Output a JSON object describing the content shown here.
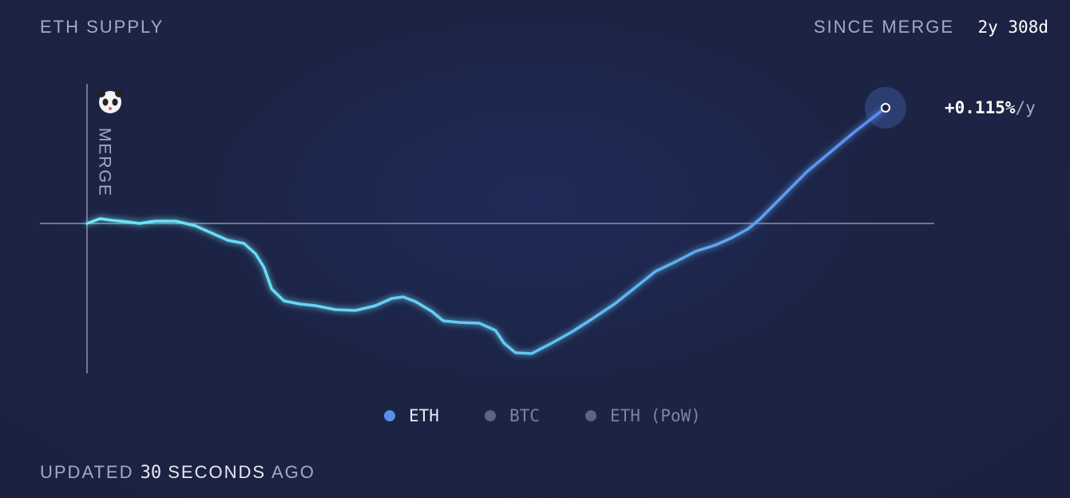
{
  "header": {
    "title": "ETH SUPPLY",
    "since_label": "SINCE MERGE",
    "since_value": "2y 308d"
  },
  "chart_data": {
    "type": "line",
    "marker_label": "MERGE",
    "end_label": "+0.115%",
    "end_unit": "/y",
    "x": [
      0,
      17,
      32,
      53,
      68,
      89,
      115,
      141,
      162,
      183,
      204,
      219,
      230,
      240,
      256,
      277,
      297,
      323,
      349,
      375,
      396,
      411,
      427,
      448,
      463,
      484,
      510,
      531,
      542,
      557,
      578,
      604,
      630,
      656,
      687,
      713,
      739,
      765,
      791,
      817,
      838,
      859,
      874,
      905,
      936,
      967,
      998,
      1038
    ],
    "xlim": [
      0,
      1038
    ],
    "ylim": [
      -188,
      175
    ],
    "series": [
      {
        "name": "ETH",
        "color": "#5b8def",
        "values": [
          0,
          6,
          4,
          2,
          0,
          3,
          3,
          -3,
          -12,
          -21,
          -25,
          -38,
          -55,
          -82,
          -97,
          -101,
          -103,
          -108,
          -109,
          -103,
          -94,
          -92,
          -98,
          -110,
          -122,
          -124,
          -125,
          -134,
          -150,
          -162,
          -163,
          -150,
          -136,
          -120,
          -100,
          -80,
          -60,
          -48,
          -35,
          -27,
          -18,
          -7,
          5,
          35,
          65,
          90,
          115,
          145
        ]
      }
    ]
  },
  "toggles": [
    {
      "name": "BTC",
      "color": "#5d6480"
    },
    {
      "name": "ETH (PoW)",
      "color": "#5d6480"
    }
  ],
  "footer": {
    "prefix": "UPDATED",
    "count": 30,
    "unit": "SECONDS",
    "suffix": "AGO"
  }
}
